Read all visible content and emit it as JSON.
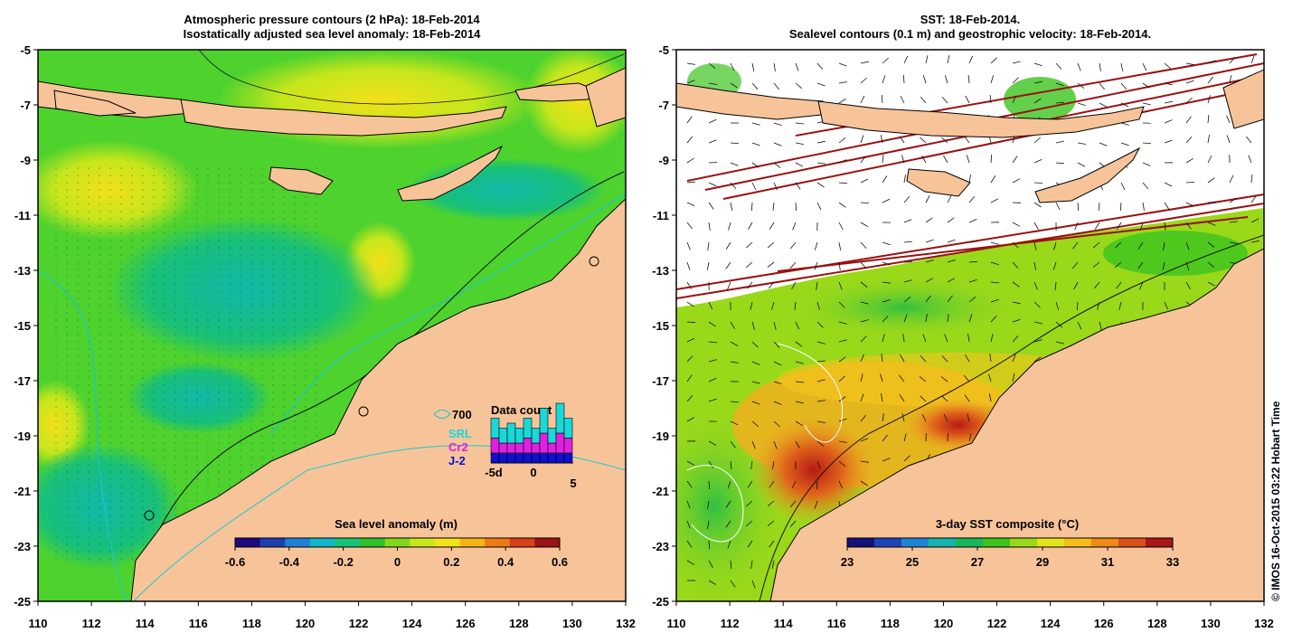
{
  "left_panel": {
    "title_line1": "Atmospheric pressure contours (2 hPa): 18-Feb-2014",
    "title_line2": "Isostatically adjusted sea level anomaly: 18-Feb-2014",
    "colorbar": {
      "label": "Sea level anomaly (m)",
      "ticks": [
        "-0.6",
        "-0.4",
        "-0.2",
        "0",
        "0.2",
        "0.4",
        "0.6"
      ],
      "colors": [
        "#1a0a7a",
        "#1d3fb0",
        "#1e7fd8",
        "#12b6c8",
        "#16c27a",
        "#2dc02a",
        "#7fd91b",
        "#c8e61c",
        "#f0e31a",
        "#f6b418",
        "#ef7a14",
        "#d8401a",
        "#9a1414"
      ]
    },
    "legend": {
      "depth": "700",
      "srl": "SRL",
      "cr2": "Cr2",
      "j2": "J-2",
      "data_count_title": "Data count",
      "axis_ticks": [
        "-5d",
        "0",
        "5"
      ],
      "bars": [
        {
          "j2": 2,
          "cr2": 3,
          "srl": 4
        },
        {
          "j2": 2,
          "cr2": 2,
          "srl": 3
        },
        {
          "j2": 2,
          "cr2": 2,
          "srl": 4
        },
        {
          "j2": 2,
          "cr2": 2,
          "srl": 3
        },
        {
          "j2": 2,
          "cr2": 3,
          "srl": 4
        },
        {
          "j2": 2,
          "cr2": 2,
          "srl": 3
        },
        {
          "j2": 2,
          "cr2": 4,
          "srl": 5
        },
        {
          "j2": 2,
          "cr2": 2,
          "srl": 3
        },
        {
          "j2": 2,
          "cr2": 4,
          "srl": 6
        },
        {
          "j2": 2,
          "cr2": 3,
          "srl": 4
        }
      ]
    }
  },
  "right_panel": {
    "title_line1": "SST: 18-Feb-2014.",
    "title_line2": "Sealevel contours (0.1 m) and geostrophic velocity: 18-Feb-2014.",
    "colorbar": {
      "label": "3-day SST composite (°C)",
      "ticks": [
        "23",
        "25",
        "27",
        "29",
        "31",
        "33"
      ],
      "colors": [
        "#14117a",
        "#1e44b8",
        "#1e84d6",
        "#15b4b0",
        "#18b85a",
        "#3cc41e",
        "#9ad81a",
        "#e2e41a",
        "#f6bd1a",
        "#ef8a16",
        "#d8501a",
        "#a81616"
      ]
    }
  },
  "axes": {
    "lat_ticks": [
      "-5",
      "-7",
      "-9",
      "-11",
      "-13",
      "-15",
      "-17",
      "-19",
      "-21",
      "-23",
      "-25"
    ],
    "lon_ticks": [
      "110",
      "112",
      "114",
      "116",
      "118",
      "120",
      "122",
      "124",
      "126",
      "128",
      "130",
      "132"
    ]
  },
  "credit": "© IMOS 16-Oct-2015 03:22 Hobart Time",
  "colors": {
    "land": "#f7c49a",
    "ocean_green": "#4ed22e",
    "ocean_yellow": "#c6e61c",
    "ocean_cyan": "#17c29a",
    "sst_orange": "#f0a020",
    "cloud": "#ffffff",
    "swath_red": "#9a1010"
  }
}
